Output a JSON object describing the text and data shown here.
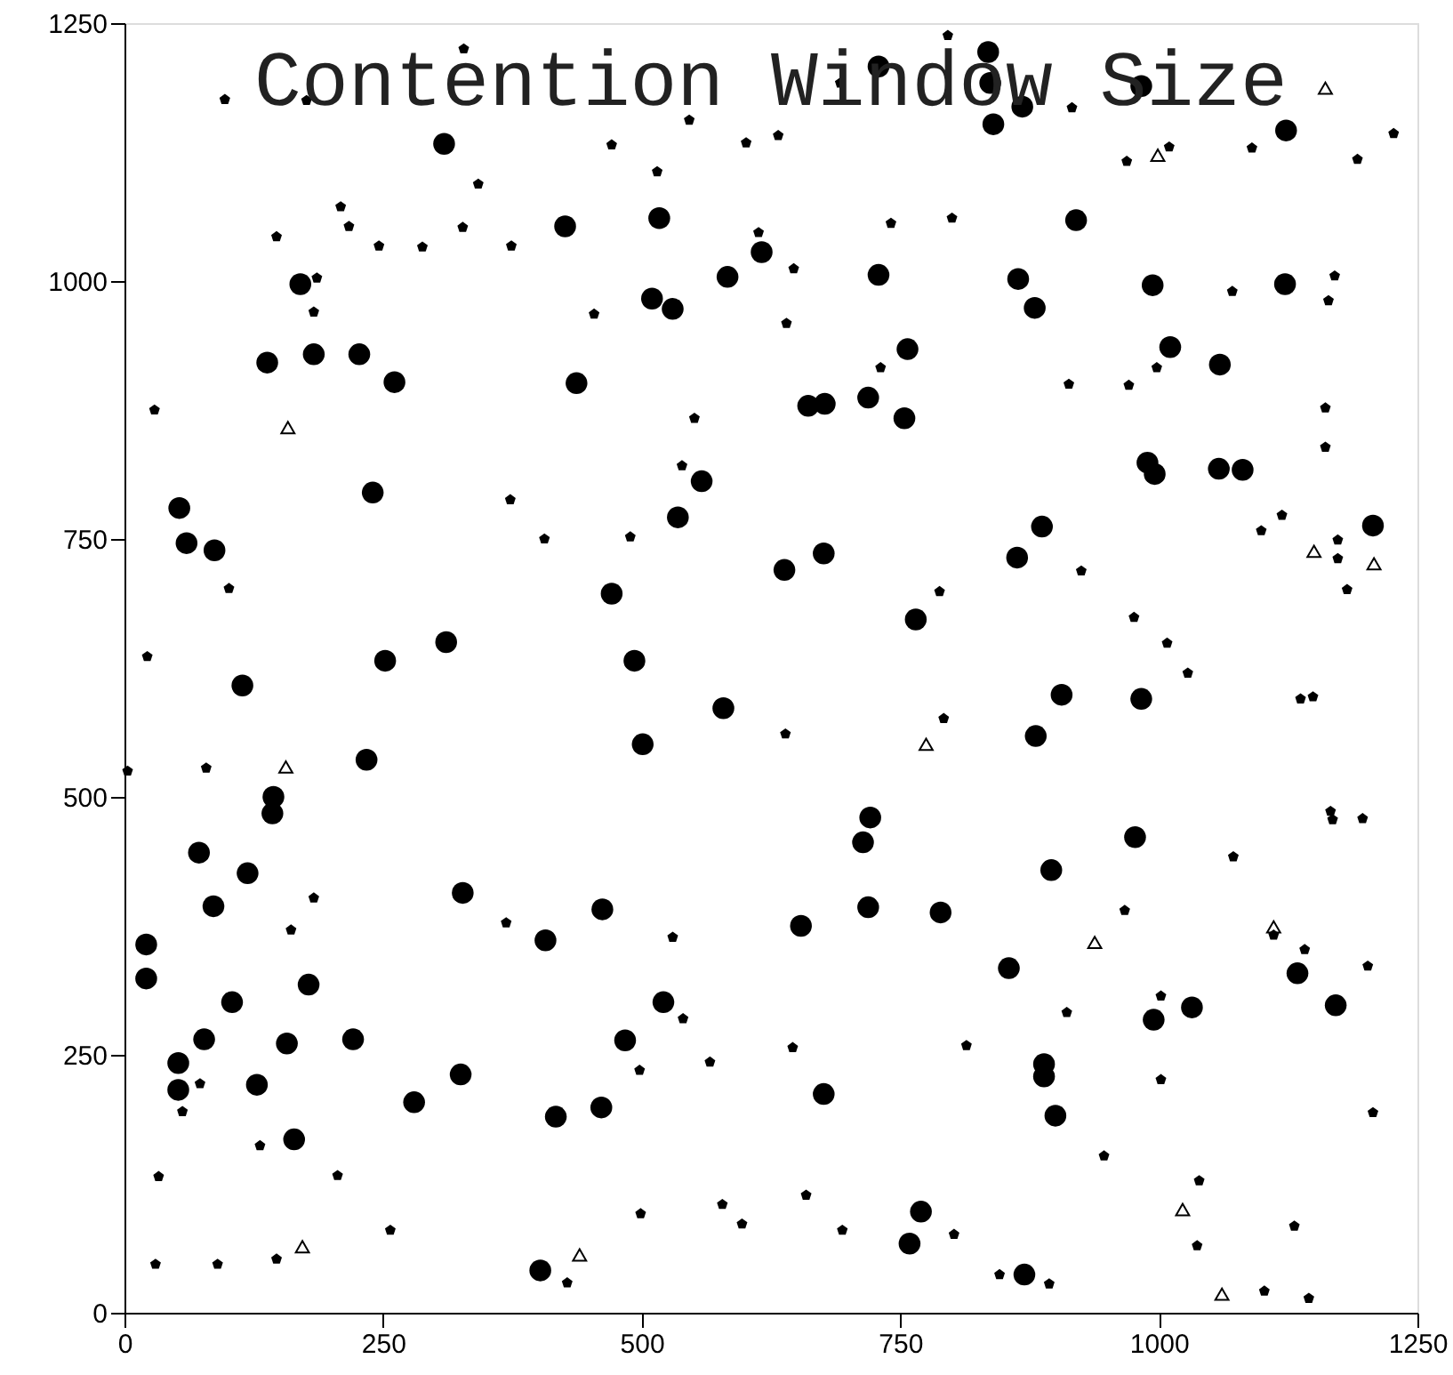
{
  "chart_data": {
    "type": "scatter",
    "title": "Contention Window Size",
    "xlim": [
      0,
      1250
    ],
    "ylim": [
      0,
      1250
    ],
    "xticks": [
      0,
      250,
      500,
      750,
      1000,
      1250
    ],
    "yticks": [
      0,
      250,
      500,
      750,
      1000,
      1250
    ],
    "series": [
      {
        "color": "#000000",
        "marker": "circle",
        "x": [
          835,
          837,
          840,
          868,
          729,
          983,
          309,
          426,
          517,
          729,
          864,
          880,
          583,
          616,
          510,
          530,
          437,
          757,
          661,
          677,
          719,
          754,
          558,
          535,
          676,
          638,
          471,
          765,
          863,
          493,
          170,
          138,
          183,
          227,
          261,
          240,
          53,
          60,
          87,
          311,
          252,
          920,
          1123,
          994,
          1122,
          1011,
          1059,
          989,
          996,
          1058,
          1081,
          887,
          1207,
          114,
          234,
          144,
          143,
          72,
          119,
          86,
          327,
          407,
          21,
          21,
          178,
          104,
          77,
          157,
          221,
          52,
          52,
          128,
          280,
          325,
          417,
          164,
          402,
          579,
          501,
          721,
          714,
          462,
          654,
          719,
          789,
          855,
          521,
          484,
          461,
          676,
          770,
          759,
          870,
          906,
          983,
          881,
          977,
          896,
          1134,
          1171,
          1032,
          995,
          889,
          889,
          900
        ],
        "values": [
          1222,
          1192,
          1152,
          1169,
          1208,
          1189,
          1133,
          1053,
          1061,
          1006,
          1002,
          974,
          1004,
          1028,
          983,
          973,
          901,
          934,
          879,
          881,
          887,
          867,
          806,
          771,
          736,
          720,
          697,
          672,
          732,
          632,
          997,
          921,
          929,
          929,
          902,
          795,
          780,
          746,
          739,
          650,
          632,
          1059,
          1146,
          996,
          997,
          936,
          919,
          824,
          813,
          818,
          817,
          762,
          763,
          608,
          536,
          500,
          484,
          446,
          426,
          394,
          407,
          361,
          357,
          324,
          318,
          301,
          265,
          261,
          265,
          242,
          216,
          221,
          204,
          231,
          190,
          168,
          41,
          586,
          551,
          480,
          456,
          391,
          375,
          393,
          388,
          334,
          301,
          264,
          199,
          212,
          98,
          67,
          37,
          599,
          595,
          559,
          461,
          429,
          329,
          298,
          296,
          284,
          241,
          229,
          191
        ]
      },
      {
        "color": "#000000",
        "x": [
          328,
          97,
          176,
          342,
          209,
          217,
          147,
          246,
          288,
          327,
          374,
          186,
          183,
          29,
          373,
          406,
          101,
          22,
          796,
          692,
          546,
          471,
          515,
          601,
          632,
          741,
          800,
          613,
          647,
          454,
          640,
          731,
          551,
          539,
          489,
          788,
          916,
          1010,
          969,
          1090,
          1192,
          1227,
          1071,
          1170,
          1164,
          998,
          971,
          913,
          1161,
          1161,
          1119,
          1099,
          1173,
          1173,
          1182,
          925,
          976,
          1008,
          1028,
          3,
          79,
          183,
          161,
          369,
          73,
          56,
          131,
          33,
          206,
          257,
          30,
          90,
          147,
          428,
          792,
          639,
          530,
          540,
          498,
          566,
          646,
          814,
          499,
          578,
          597,
          659,
          694,
          802,
          846,
          1137,
          1149,
          1166,
          1168,
          1197,
          1072,
          967,
          1111,
          1141,
          1202,
          1002,
          911,
          1002,
          1207,
          947,
          1039,
          1131,
          1037,
          894,
          1102,
          1145
        ],
        "values": [
          1225,
          1176,
          1175,
          1094,
          1072,
          1053,
          1043,
          1034,
          1033,
          1052,
          1034,
          1003,
          970,
          875,
          788,
          750,
          702,
          636,
          1238,
          1192,
          1156,
          1132,
          1106,
          1134,
          1141,
          1056,
          1061,
          1047,
          1012,
          968,
          959,
          916,
          867,
          821,
          752,
          699,
          1168,
          1130,
          1116,
          1129,
          1118,
          1143,
          990,
          1005,
          981,
          916,
          899,
          900,
          877,
          839,
          773,
          758,
          749,
          731,
          701,
          719,
          674,
          649,
          620,
          525,
          528,
          402,
          371,
          378,
          222,
          195,
          162,
          132,
          133,
          80,
          47,
          47,
          52,
          29,
          576,
          561,
          364,
          285,
          235,
          243,
          257,
          259,
          96,
          105,
          86,
          114,
          80,
          76,
          37,
          595,
          597,
          486,
          478,
          479,
          442,
          390,
          366,
          352,
          336,
          307,
          291,
          226,
          194,
          152,
          128,
          84,
          65,
          28,
          21,
          14
        ]
      },
      {
        "color": "#000000",
        "marker": "triangle",
        "x": [
          158,
          1161,
          999,
          156,
          172,
          440,
          775,
          938,
          1111,
          1023,
          1061,
          1150,
          1208
        ],
        "values": [
          858,
          1187,
          1122,
          529,
          64,
          56,
          551,
          359,
          374,
          100,
          18,
          738,
          726
        ]
      }
    ]
  }
}
